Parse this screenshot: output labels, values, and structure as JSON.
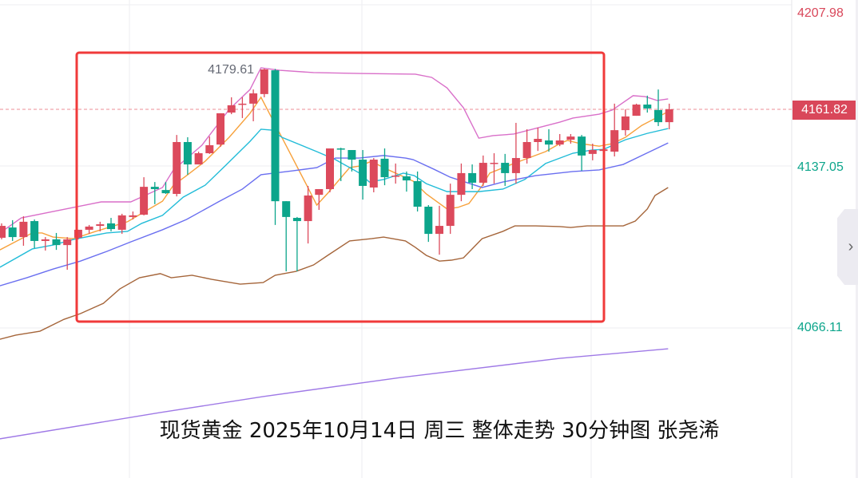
{
  "title": "现货黄金 2025年10月14日 周三 整体走势 30分钟图 张尧浠",
  "colors": {
    "up": "#dc4a5c",
    "down": "#0ca58b",
    "box": "#f03a3a",
    "grid": "#eeedf2"
  },
  "chart_data": {
    "type": "candlestick",
    "price_axis_labels": [
      {
        "value": "4207.98",
        "color": "#d9475a"
      },
      {
        "value": "4137.05",
        "color": "#0ca58b"
      },
      {
        "value": "4066.11",
        "color": "#0ca58b"
      }
    ],
    "last_price": "4161.82",
    "high_annotation": "4179.61",
    "candles_ohlc": [
      [
        4105.6,
        4111.9,
        4104.9,
        4110.8
      ],
      [
        4110.1,
        4113.3,
        4104.2,
        4105.9
      ],
      [
        4105.9,
        4115.0,
        4102.1,
        4112.6
      ],
      [
        4112.9,
        4113.6,
        4101.0,
        4104.2
      ],
      [
        4104.2,
        4105.9,
        4100.0,
        4104.9
      ],
      [
        4104.9,
        4107.7,
        4100.3,
        4102.4
      ],
      [
        4102.4,
        4105.9,
        4091.6,
        4104.9
      ],
      [
        4105.6,
        4109.1,
        4104.9,
        4109.1
      ],
      [
        4109.1,
        4111.2,
        4107.3,
        4110.5
      ],
      [
        4110.8,
        4112.6,
        4108.4,
        4111.5
      ],
      [
        4111.9,
        4114.3,
        4108.4,
        4109.4
      ],
      [
        4109.1,
        4116.1,
        4107.3,
        4115.4
      ],
      [
        4114.7,
        4117.1,
        4113.6,
        4115.4
      ],
      [
        4115.7,
        4132.1,
        4115.4,
        4127.9
      ],
      [
        4127.9,
        4130.0,
        4120.3,
        4126.9
      ],
      [
        4126.5,
        4130.0,
        4124.8,
        4125.1
      ],
      [
        4124.8,
        4150.6,
        4123.7,
        4147.5
      ],
      [
        4147.5,
        4149.6,
        4133.2,
        4137.7
      ],
      [
        4137.7,
        4143.3,
        4137.7,
        4142.6
      ],
      [
        4142.6,
        4149.9,
        4142.3,
        4146.1
      ],
      [
        4146.4,
        4160.1,
        4145.4,
        4160.1
      ],
      [
        4160.4,
        4167.1,
        4159.7,
        4163.6
      ],
      [
        4163.9,
        4167.1,
        4158.0,
        4164.3
      ],
      [
        4164.3,
        4170.5,
        4156.6,
        4168.8
      ],
      [
        4168.5,
        4179.61,
        4167.1,
        4179.3
      ],
      [
        4178.9,
        4179.5,
        4111.2,
        4121.6
      ],
      [
        4121.6,
        4121.6,
        4090.9,
        4114.7
      ],
      [
        4114.3,
        4114.7,
        4090.9,
        4112.9
      ],
      [
        4112.9,
        4128.3,
        4103.1,
        4124.1
      ],
      [
        4124.4,
        4126.9,
        4117.8,
        4126.9
      ],
      [
        4126.9,
        4144.7,
        4125.5,
        4144.7
      ],
      [
        4144.7,
        4145.0,
        4130.4,
        4144.3
      ],
      [
        4144.0,
        4144.0,
        4134.6,
        4139.8
      ],
      [
        4139.8,
        4144.0,
        4122.3,
        4128.3
      ],
      [
        4127.6,
        4140.5,
        4125.5,
        4139.8
      ],
      [
        4140.2,
        4144.7,
        4128.6,
        4132.1
      ],
      [
        4132.5,
        4138.1,
        4129.3,
        4132.8
      ],
      [
        4132.5,
        4134.6,
        4125.8,
        4130.7
      ],
      [
        4130.4,
        4134.6,
        4117.1,
        4119.2
      ],
      [
        4119.2,
        4119.9,
        4103.8,
        4107.3
      ],
      [
        4107.3,
        4119.6,
        4098.2,
        4110.8
      ],
      [
        4110.8,
        4129.3,
        4107.3,
        4124.4
      ],
      [
        4124.4,
        4138.1,
        4121.6,
        4133.9
      ],
      [
        4133.9,
        4137.7,
        4126.9,
        4129.7
      ],
      [
        4129.7,
        4141.6,
        4128.3,
        4138.4
      ],
      [
        4138.1,
        4142.6,
        4129.3,
        4138.4
      ],
      [
        4138.4,
        4142.3,
        4128.3,
        4133.9
      ],
      [
        4133.9,
        4155.9,
        4129.3,
        4140.5
      ],
      [
        4140.5,
        4153.1,
        4138.1,
        4147.5
      ],
      [
        4147.5,
        4153.8,
        4143.6,
        4148.9
      ],
      [
        4148.2,
        4153.1,
        4143.3,
        4146.4
      ],
      [
        4146.4,
        4151.0,
        4145.7,
        4148.2
      ],
      [
        4148.5,
        4151.0,
        4146.8,
        4149.9
      ],
      [
        4149.9,
        4150.6,
        4134.9,
        4141.6
      ],
      [
        4142.3,
        4146.8,
        4139.5,
        4144.0
      ],
      [
        4143.6,
        4146.8,
        4142.3,
        4144.3
      ],
      [
        4143.3,
        4164.3,
        4141.2,
        4152.7
      ],
      [
        4152.7,
        4161.8,
        4150.3,
        4158.7
      ],
      [
        4159.0,
        4164.3,
        4159.0,
        4163.9
      ],
      [
        4163.9,
        4167.8,
        4160.4,
        4162.2
      ],
      [
        4161.5,
        4170.5,
        4154.5,
        4156.2
      ],
      [
        4156.2,
        4164.3,
        4153.1,
        4161.82
      ]
    ],
    "indicator_lines": [
      {
        "color": "#d96fc9",
        "points": [
          [
            0.85,
            4107.7
          ],
          [
            2.8,
            4114.3
          ],
          [
            5.7,
            4117.1
          ],
          [
            10.1,
            4121.3
          ],
          [
            12.8,
            4121.3
          ],
          [
            15.7,
            4127.6
          ],
          [
            16.7,
            4135.3
          ],
          [
            19.3,
            4146.1
          ],
          [
            21.8,
            4161.8
          ],
          [
            23.7,
            4170.5
          ],
          [
            24.7,
            4180.0
          ],
          [
            26.4,
            4178.9
          ],
          [
            29.5,
            4177.9
          ],
          [
            33.7,
            4177.5
          ],
          [
            38.8,
            4177.2
          ],
          [
            40.3,
            4175.8
          ],
          [
            41.7,
            4171.2
          ],
          [
            43.2,
            4162.5
          ],
          [
            44.6,
            4149.2
          ],
          [
            45.9,
            4150.3
          ],
          [
            47.8,
            4151.0
          ],
          [
            49.5,
            4153.1
          ],
          [
            52.0,
            4156.2
          ],
          [
            53.2,
            4158.0
          ],
          [
            55.6,
            4159.7
          ],
          [
            56.8,
            4161.5
          ],
          [
            58.7,
            4167.8
          ],
          [
            59.8,
            4167.4
          ],
          [
            60.9,
            4165.7
          ],
          [
            61.9,
            4166.4
          ]
        ]
      },
      {
        "color": "#f7a13b",
        "points": [
          [
            0.85,
            4100.3
          ],
          [
            3.8,
            4107.7
          ],
          [
            4.7,
            4107.7
          ],
          [
            5.7,
            4105.9
          ],
          [
            7.6,
            4105.2
          ],
          [
            9.6,
            4108.4
          ],
          [
            12.5,
            4112.6
          ],
          [
            15.7,
            4121.6
          ],
          [
            16.7,
            4128.6
          ],
          [
            17.9,
            4132.8
          ],
          [
            19.6,
            4139.1
          ],
          [
            21.8,
            4149.6
          ],
          [
            23.7,
            4160.1
          ],
          [
            24.7,
            4167.1
          ],
          [
            26.6,
            4149.6
          ],
          [
            28.8,
            4129.3
          ],
          [
            29.8,
            4119.9
          ],
          [
            30.8,
            4125.1
          ],
          [
            32.8,
            4136.3
          ],
          [
            33.7,
            4137.0
          ],
          [
            34.8,
            4139.1
          ],
          [
            35.9,
            4136.3
          ],
          [
            38.6,
            4130.4
          ],
          [
            39.8,
            4124.8
          ],
          [
            41.7,
            4118.2
          ],
          [
            42.7,
            4118.9
          ],
          [
            43.7,
            4120.6
          ],
          [
            44.9,
            4128.3
          ],
          [
            45.6,
            4133.9
          ],
          [
            47.8,
            4138.1
          ],
          [
            50.7,
            4143.3
          ],
          [
            52.0,
            4146.8
          ],
          [
            52.7,
            4148.2
          ],
          [
            53.9,
            4146.8
          ],
          [
            55.6,
            4145.7
          ],
          [
            56.8,
            4146.8
          ],
          [
            58.0,
            4149.6
          ],
          [
            59.5,
            4154.8
          ],
          [
            60.5,
            4157.3
          ],
          [
            61.9,
            4160.8
          ]
        ]
      },
      {
        "color": "#22bcd8",
        "points": [
          [
            0.85,
            4092.7
          ],
          [
            3.8,
            4100.7
          ],
          [
            5.7,
            4102.4
          ],
          [
            7.6,
            4104.9
          ],
          [
            10.6,
            4107.7
          ],
          [
            12.5,
            4108.4
          ],
          [
            13.8,
            4111.9
          ],
          [
            15.7,
            4115.4
          ],
          [
            17.6,
            4123.4
          ],
          [
            19.6,
            4128.6
          ],
          [
            21.5,
            4137.4
          ],
          [
            23.7,
            4147.8
          ],
          [
            24.7,
            4153.1
          ],
          [
            25.7,
            4152.7
          ],
          [
            26.6,
            4149.6
          ],
          [
            29.8,
            4143.3
          ],
          [
            31.5,
            4139.8
          ],
          [
            33.7,
            4133.9
          ],
          [
            34.6,
            4130.0
          ],
          [
            35.9,
            4131.1
          ],
          [
            37.7,
            4133.9
          ],
          [
            38.7,
            4132.8
          ],
          [
            39.8,
            4129.3
          ],
          [
            41.7,
            4125.8
          ],
          [
            44.6,
            4125.8
          ],
          [
            46.8,
            4126.9
          ],
          [
            48.8,
            4131.1
          ],
          [
            50.7,
            4138.1
          ],
          [
            53.2,
            4142.6
          ],
          [
            54.9,
            4144.0
          ],
          [
            56.0,
            4144.3
          ],
          [
            58.0,
            4148.5
          ],
          [
            60.0,
            4151.3
          ],
          [
            61.9,
            4153.4
          ]
        ]
      },
      {
        "color": "#6a6ff0",
        "points": [
          [
            0.85,
            4084.6
          ],
          [
            3.3,
            4088.1
          ],
          [
            5.7,
            4091.9
          ],
          [
            8.2,
            4095.4
          ],
          [
            10.6,
            4099.6
          ],
          [
            12.8,
            4103.8
          ],
          [
            15.7,
            4109.1
          ],
          [
            17.9,
            4113.6
          ],
          [
            20.8,
            4121.3
          ],
          [
            23.0,
            4126.9
          ],
          [
            24.7,
            4133.2
          ],
          [
            27.6,
            4134.9
          ],
          [
            29.8,
            4136.3
          ],
          [
            31.5,
            4140.5
          ],
          [
            33.7,
            4140.5
          ],
          [
            35.9,
            4141.6
          ],
          [
            37.9,
            4140.5
          ],
          [
            38.6,
            4139.8
          ],
          [
            40.5,
            4135.6
          ],
          [
            42.0,
            4132.1
          ],
          [
            44.9,
            4127.6
          ],
          [
            46.8,
            4130.0
          ],
          [
            49.8,
            4132.8
          ],
          [
            53.2,
            4134.6
          ],
          [
            55.6,
            4135.3
          ],
          [
            57.8,
            4137.7
          ],
          [
            59.8,
            4142.3
          ],
          [
            61.9,
            4147.1
          ]
        ]
      },
      {
        "color": "#a5653a",
        "points": [
          [
            0.85,
            4061.2
          ],
          [
            2.3,
            4063.0
          ],
          [
            4.5,
            4064.7
          ],
          [
            6.7,
            4069.9
          ],
          [
            8.2,
            4072.4
          ],
          [
            10.3,
            4076.9
          ],
          [
            11.8,
            4083.2
          ],
          [
            13.6,
            4088.1
          ],
          [
            15.5,
            4089.9
          ],
          [
            16.5,
            4088.1
          ],
          [
            18.4,
            4089.2
          ],
          [
            20.2,
            4087.4
          ],
          [
            22.8,
            4085.3
          ],
          [
            24.9,
            4086.0
          ],
          [
            26.0,
            4089.2
          ],
          [
            27.9,
            4090.9
          ],
          [
            29.5,
            4093.7
          ],
          [
            30.8,
            4097.9
          ],
          [
            32.8,
            4104.2
          ],
          [
            34.8,
            4105.2
          ],
          [
            35.9,
            4105.9
          ],
          [
            37.9,
            4104.2
          ],
          [
            38.8,
            4101.4
          ],
          [
            39.8,
            4097.9
          ],
          [
            41.0,
            4095.4
          ],
          [
            42.1,
            4095.8
          ],
          [
            43.2,
            4096.8
          ],
          [
            44.9,
            4105.2
          ],
          [
            46.8,
            4108.4
          ],
          [
            47.9,
            4110.8
          ],
          [
            49.8,
            4110.8
          ],
          [
            52.0,
            4110.5
          ],
          [
            53.0,
            4110.1
          ],
          [
            54.5,
            4110.8
          ],
          [
            57.8,
            4110.8
          ],
          [
            58.9,
            4112.9
          ],
          [
            60.0,
            4118.2
          ],
          [
            60.7,
            4124.1
          ],
          [
            61.9,
            4127.6
          ]
        ]
      },
      {
        "color": "#9f79e6",
        "points": [
          [
            0.85,
            4017.6
          ],
          [
            15.5,
            4029.1
          ],
          [
            24.9,
            4036.1
          ],
          [
            37.4,
            4044.4
          ],
          [
            52.0,
            4052.8
          ],
          [
            61.9,
            4057.0
          ]
        ]
      }
    ]
  }
}
